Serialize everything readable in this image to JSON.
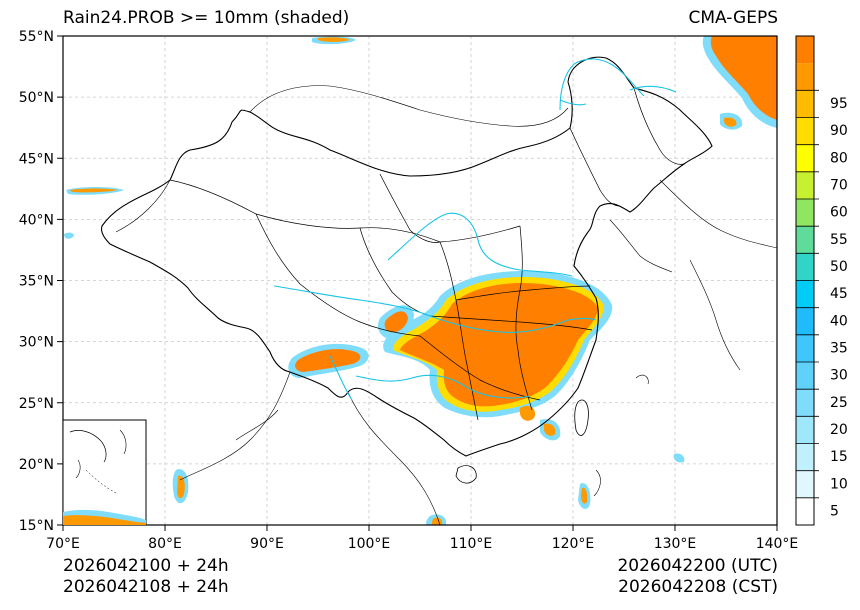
{
  "title": "Rain24.PROB >= 10mm (shaded)",
  "model": "CMA-GEPS",
  "map": {
    "lat_ticks": [
      "55°N",
      "50°N",
      "45°N",
      "40°N",
      "35°N",
      "30°N",
      "25°N",
      "20°N",
      "15°N"
    ],
    "lon_ticks": [
      "70°E",
      "80°E",
      "90°E",
      "100°E",
      "110°E",
      "120°E",
      "130°E",
      "140°E"
    ]
  },
  "colorbar": {
    "labels": [
      "5",
      "10",
      "15",
      "20",
      "25",
      "30",
      "35",
      "40",
      "45",
      "50",
      "55",
      "60",
      "70",
      "80",
      "90",
      "95"
    ],
    "colors": [
      "#ffffff",
      "#e0f8fd",
      "#bff0fb",
      "#9fe7fb",
      "#7fdcfb",
      "#5fd1fb",
      "#3fc6fb",
      "#1fbbfb",
      "#00ccf6",
      "#30d5c8",
      "#5fdc9a",
      "#8fe660",
      "#c6f030",
      "#ffff00",
      "#ffdd00",
      "#ffbb00",
      "#ff9900",
      "#ff7f00"
    ]
  },
  "footer": {
    "init_utc": "2026042100 + 24h",
    "init_cst": "2026042108 + 24h",
    "valid_utc": "2026042200 (UTC)",
    "valid_cst": "2026042208 (CST)"
  }
}
